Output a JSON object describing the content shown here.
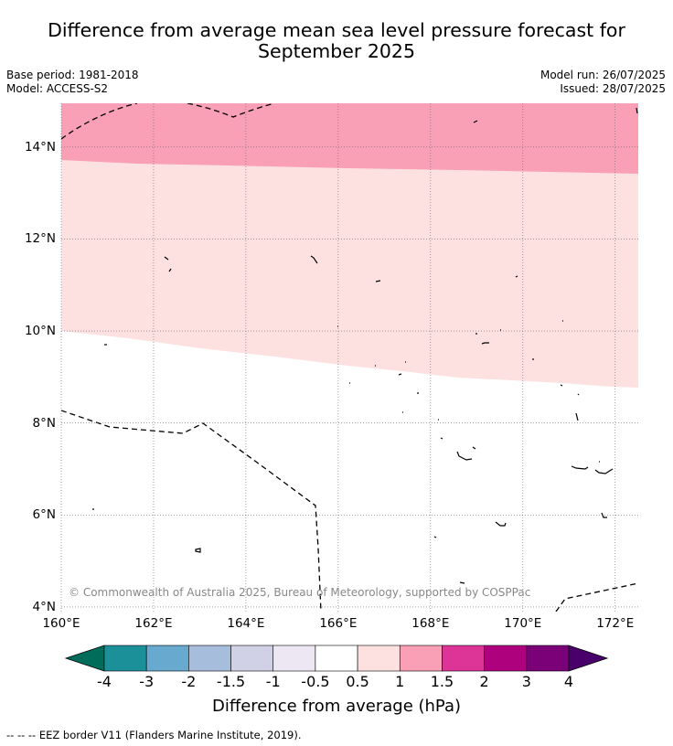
{
  "title": "Difference from average mean sea level pressure forecast for September 2025",
  "base_period": "Base period: 1981-2018",
  "model": "Model: ACCESS-S2",
  "model_run": "Model run: 26/07/2025",
  "issued": "Issued: 28/07/2025",
  "copyright": "© Commonwealth of Australia 2025, Bureau of Meteorology, supported by COSPPac",
  "map": {
    "lat_ticks": [
      "14°N",
      "12°N",
      "10°N",
      "8°N",
      "6°N",
      "4°N"
    ],
    "lon_ticks": [
      "160°E",
      "162°E",
      "164°E",
      "166°E",
      "168°E",
      "170°E",
      "172°E"
    ],
    "lat_range": [
      3.9,
      14.95
    ],
    "lon_range": [
      160,
      172.5
    ],
    "grid": true,
    "fields": [
      {
        "range": "1.0 to 1.5",
        "color": "#f9a0b6"
      },
      {
        "range": "0.5 to 1.0",
        "color": "#fde0e0"
      },
      {
        "range": "-0.5 to 0.5",
        "color": "#ffffff"
      }
    ]
  },
  "colorbar": {
    "colors": [
      "#016c59",
      "#1c9099",
      "#67a9cf",
      "#a6bddb",
      "#d0d1e6",
      "#ece7f2",
      "#ffffff",
      "#fde0e0",
      "#f9a0b6",
      "#dd3497",
      "#ae017e",
      "#7a0177",
      "#49006a"
    ],
    "labels": [
      "-4",
      "-3",
      "-2",
      "-1.5",
      "-1",
      "-0.5",
      "0.5",
      "1",
      "1.5",
      "2",
      "3",
      "4"
    ],
    "title": "Difference from average (hPa)"
  },
  "footnote": "--  --  -- EEZ border V11 (Flanders Marine Institute, 2019)."
}
